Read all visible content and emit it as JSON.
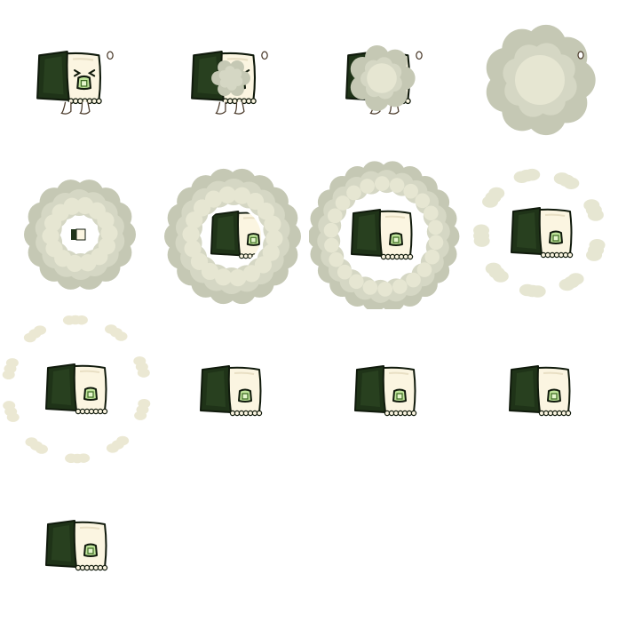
{
  "sprite_sheet": {
    "background": "#ffffff",
    "palette": {
      "nori_dark": "#1f3318",
      "nori_mid": "#2e4a25",
      "nori_edge": "#101a0c",
      "rice": "#fbf5e1",
      "rice_shadow": "#e8dfc4",
      "cucumber": "#bfe49a",
      "cucumber_edge": "#3d6b24",
      "smoke_dark": "#c5c8b4",
      "smoke_mid": "#d5d7c4",
      "smoke_light": "#e6e6d2",
      "puff_pale": "#ebe8d3"
    },
    "frames": [
      {
        "state": "walk-face-closed"
      },
      {
        "state": "walk-smoke-start"
      },
      {
        "state": "walk-smoke-grow"
      },
      {
        "state": "full-smoke-cloud"
      },
      {
        "state": "ring-small"
      },
      {
        "state": "ring-medium"
      },
      {
        "state": "ring-large"
      },
      {
        "state": "ring-broken"
      },
      {
        "state": "ring-fading"
      },
      {
        "state": "roll-idle"
      },
      {
        "state": "roll-idle"
      },
      {
        "state": "roll-idle"
      },
      {
        "state": "roll-idle"
      }
    ]
  }
}
